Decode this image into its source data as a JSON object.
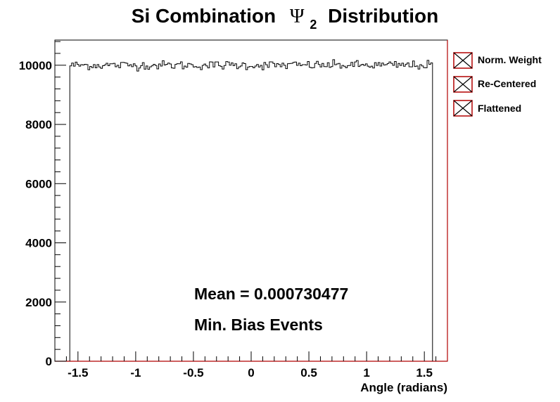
{
  "chart_data": {
    "type": "histogram",
    "title": {
      "prefix": "Si Combination",
      "symbol": "Ψ",
      "subscript": "2",
      "suffix": "Distribution"
    },
    "xlabel": "Angle (radians)",
    "ylabel": "",
    "xlim": [
      -1.7,
      1.7
    ],
    "ylim": [
      0,
      10850
    ],
    "x_ticks": [
      -1.5,
      -1,
      -0.5,
      0,
      0.5,
      1,
      1.5
    ],
    "x_tick_labels": [
      "-1.5",
      "-1",
      "-0.5",
      "0",
      "0.5",
      "1",
      "1.5"
    ],
    "y_ticks": [
      0,
      2000,
      4000,
      6000,
      8000,
      10000
    ],
    "y_tick_labels": [
      "0",
      "2000",
      "4000",
      "6000",
      "8000",
      "10000"
    ],
    "grid": false,
    "bins": {
      "low": -1.5708,
      "high": 1.5708,
      "count": 200,
      "typical_content": 10000,
      "range": [
        9800,
        10200
      ]
    },
    "series": [
      {
        "name": "Norm. Weight",
        "color": "#000000",
        "visible": false
      },
      {
        "name": "Re-Centered",
        "color": "#000000",
        "visible": false
      },
      {
        "name": "Flattened",
        "color": "#000000",
        "visible": true
      }
    ],
    "legend": {
      "placement": "right",
      "entries": [
        "Norm. Weight",
        "Re-Centered",
        "Flattened"
      ],
      "marker_border_color": "#b20000"
    },
    "annotations": {
      "mean": "Mean = 0.000730477",
      "events": "Min. Bias Events"
    },
    "frame_color": "#b20000"
  }
}
